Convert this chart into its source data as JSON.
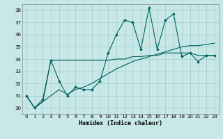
{
  "xlabel": "Humidex (Indice chaleur)",
  "bg_color": "#c8e8e8",
  "grid_color": "#a8d0d0",
  "line_color": "#006060",
  "xlim": [
    -0.5,
    23.5
  ],
  "ylim": [
    29.5,
    38.5
  ],
  "xticks": [
    0,
    1,
    2,
    3,
    4,
    5,
    6,
    7,
    8,
    9,
    10,
    11,
    12,
    13,
    14,
    15,
    16,
    17,
    18,
    19,
    20,
    21,
    22,
    23
  ],
  "yticks": [
    30,
    31,
    32,
    33,
    34,
    35,
    36,
    37,
    38
  ],
  "s1_x": [
    0,
    1,
    2,
    3,
    4,
    5,
    6,
    7,
    8,
    9,
    10,
    11,
    12,
    13,
    14,
    15,
    16,
    17,
    18,
    19,
    20,
    21,
    22,
    23
  ],
  "s1_y": [
    31.0,
    30.0,
    30.7,
    33.9,
    32.2,
    31.0,
    31.7,
    31.5,
    31.5,
    32.2,
    34.5,
    36.0,
    37.2,
    37.0,
    34.8,
    38.2,
    34.8,
    37.2,
    37.7,
    34.2,
    34.5,
    33.8,
    34.3,
    34.3
  ],
  "s2_x": [
    0,
    1,
    2,
    3,
    4,
    5,
    6,
    7,
    8,
    9,
    10,
    11,
    12,
    13,
    14,
    15,
    16,
    17,
    18,
    19,
    20,
    21,
    22,
    23
  ],
  "s2_y": [
    31.0,
    30.0,
    30.5,
    33.9,
    33.9,
    33.9,
    33.9,
    33.9,
    33.9,
    33.9,
    33.9,
    34.0,
    34.0,
    34.2,
    34.2,
    34.3,
    34.3,
    34.5,
    34.5,
    34.5,
    34.5,
    34.3,
    34.3,
    34.3
  ],
  "s3_x": [
    0,
    1,
    2,
    3,
    4,
    5,
    6,
    7,
    8,
    9,
    10,
    11,
    12,
    13,
    14,
    15,
    16,
    17,
    18,
    19,
    20,
    21,
    22,
    23
  ],
  "s3_y": [
    31.0,
    30.0,
    30.5,
    31.0,
    31.5,
    31.1,
    31.5,
    31.7,
    32.0,
    32.4,
    32.8,
    33.2,
    33.5,
    33.8,
    34.0,
    34.2,
    34.4,
    34.6,
    34.8,
    35.0,
    35.1,
    35.1,
    35.2,
    35.3
  ]
}
